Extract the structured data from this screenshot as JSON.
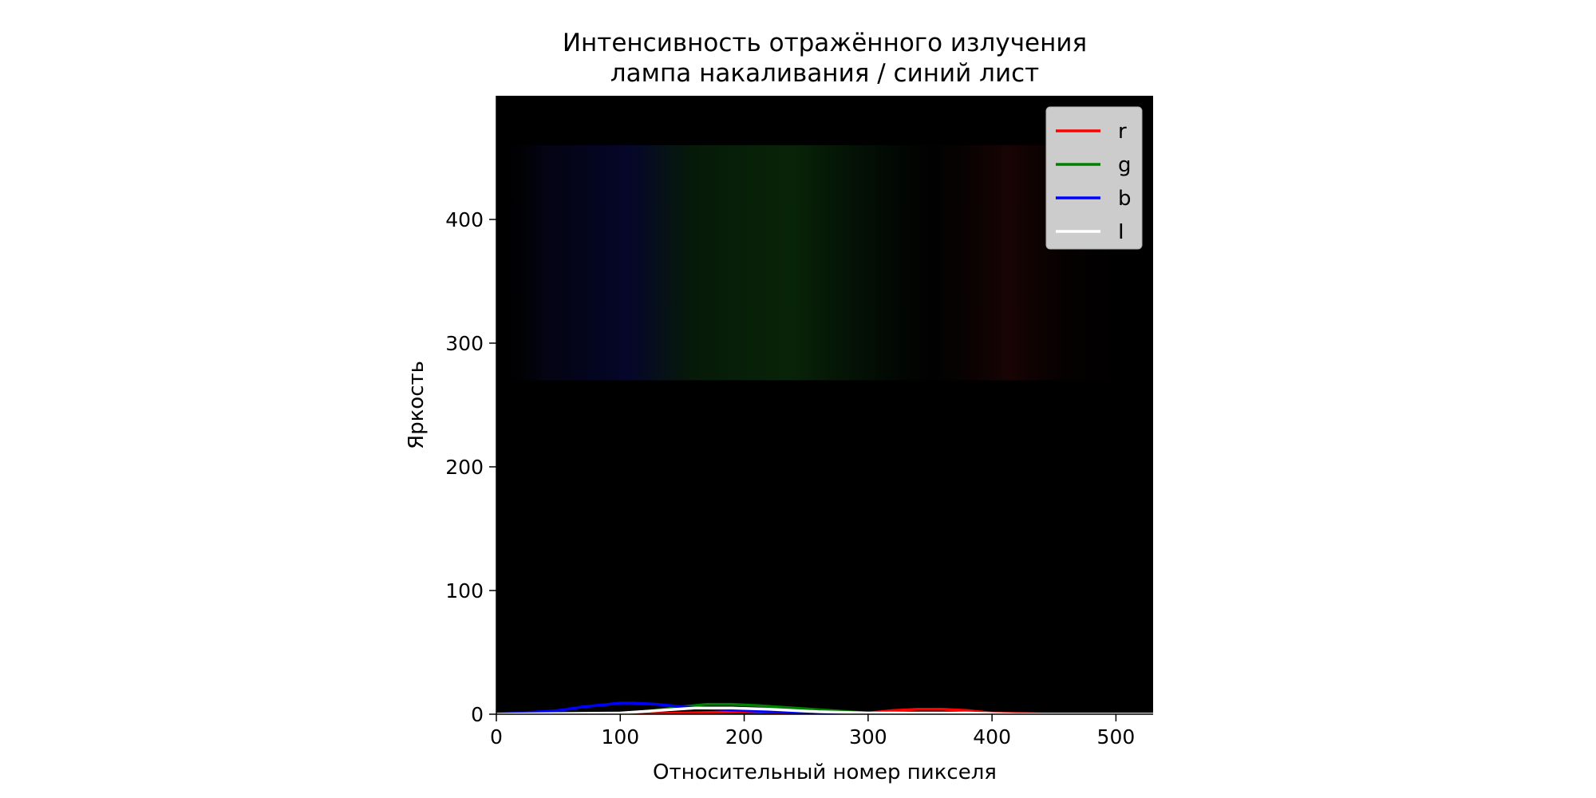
{
  "chart_data": {
    "type": "line",
    "title_lines": [
      "Интенсивность отражённого излучения",
      "лампа накаливания / синий лист"
    ],
    "xlabel": "Относительный номер пикселя",
    "ylabel": "Яркость",
    "xlim": [
      0,
      530
    ],
    "ylim": [
      0,
      500
    ],
    "x_ticks": [
      0,
      100,
      200,
      300,
      400,
      500
    ],
    "y_ticks": [
      0,
      100,
      200,
      300,
      400
    ],
    "grid": false,
    "legend_position": "top-right",
    "background_image": "dim spectrum image (blue-green-red bands) on black",
    "series": [
      {
        "name": "r",
        "color": "#ff0000",
        "x": [
          0,
          100,
          150,
          200,
          250,
          300,
          320,
          340,
          360,
          380,
          400,
          450,
          530
        ],
        "y": [
          0,
          0,
          1,
          2,
          1,
          1,
          3,
          4,
          4,
          3,
          1,
          0,
          0
        ]
      },
      {
        "name": "g",
        "color": "#008000",
        "x": [
          0,
          80,
          120,
          150,
          170,
          190,
          210,
          240,
          270,
          300,
          350,
          530
        ],
        "y": [
          0,
          0,
          2,
          6,
          8,
          8,
          7,
          5,
          3,
          1,
          0,
          0
        ]
      },
      {
        "name": "b",
        "color": "#0000ff",
        "x": [
          0,
          20,
          50,
          70,
          90,
          100,
          110,
          130,
          150,
          180,
          220,
          260,
          300,
          530
        ],
        "y": [
          0,
          1,
          3,
          6,
          8,
          9,
          9,
          8,
          6,
          4,
          2,
          1,
          0,
          0
        ]
      },
      {
        "name": "I",
        "color": "#ffffff",
        "x": [
          0,
          100,
          130,
          160,
          190,
          220,
          260,
          300,
          340,
          380,
          420,
          530
        ],
        "y": [
          0,
          1,
          3,
          5,
          5,
          4,
          2,
          1,
          1,
          1,
          0,
          0
        ]
      }
    ]
  }
}
